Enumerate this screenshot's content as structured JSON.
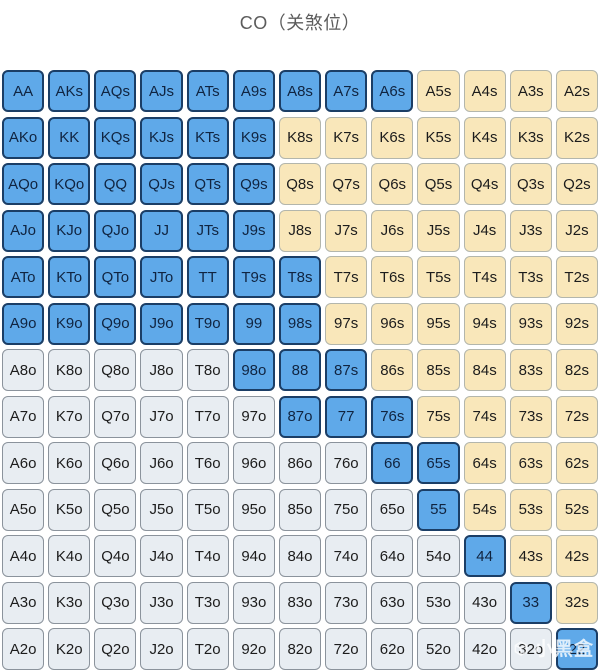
{
  "title": "CO（关煞位）",
  "watermark": {
    "label": "小黑盒"
  },
  "colors": {
    "title_color": "#5c5c5c",
    "cell_text": "#1c1c1c",
    "blue_fill": "#5FA9E9",
    "blue_border": "#1B3E66",
    "blue_text": "#102440",
    "yellow_fill": "#F9E7BA",
    "yellow_border": "#B3B6AC",
    "gray_fill": "#E8EDF2",
    "gray_border": "#8B939C",
    "watermark_color": "rgba(255,255,255,0.8)"
  },
  "chart_data": {
    "type": "heatmap",
    "title": "CO（关煞位）",
    "description_of_states": "13x13 poker starting-hand matrix; state b = blue highlighted hand, y = yellow/cream hand, g = gray unhighlighted hand",
    "state_key": {
      "b": "blue",
      "y": "yellow",
      "g": "gray"
    },
    "labels": [
      [
        "AA",
        "AKs",
        "AQs",
        "AJs",
        "ATs",
        "A9s",
        "A8s",
        "A7s",
        "A6s",
        "A5s",
        "A4s",
        "A3s",
        "A2s"
      ],
      [
        "AKo",
        "KK",
        "KQs",
        "KJs",
        "KTs",
        "K9s",
        "K8s",
        "K7s",
        "K6s",
        "K5s",
        "K4s",
        "K3s",
        "K2s"
      ],
      [
        "AQo",
        "KQo",
        "QQ",
        "QJs",
        "QTs",
        "Q9s",
        "Q8s",
        "Q7s",
        "Q6s",
        "Q5s",
        "Q4s",
        "Q3s",
        "Q2s"
      ],
      [
        "AJo",
        "KJo",
        "QJo",
        "JJ",
        "JTs",
        "J9s",
        "J8s",
        "J7s",
        "J6s",
        "J5s",
        "J4s",
        "J3s",
        "J2s"
      ],
      [
        "ATo",
        "KTo",
        "QTo",
        "JTo",
        "TT",
        "T9s",
        "T8s",
        "T7s",
        "T6s",
        "T5s",
        "T4s",
        "T3s",
        "T2s"
      ],
      [
        "A9o",
        "K9o",
        "Q9o",
        "J9o",
        "T9o",
        "99",
        "98s",
        "97s",
        "96s",
        "95s",
        "94s",
        "93s",
        "92s"
      ],
      [
        "A8o",
        "K8o",
        "Q8o",
        "J8o",
        "T8o",
        "98o",
        "88",
        "87s",
        "86s",
        "85s",
        "84s",
        "83s",
        "82s"
      ],
      [
        "A7o",
        "K7o",
        "Q7o",
        "J7o",
        "T7o",
        "97o",
        "87o",
        "77",
        "76s",
        "75s",
        "74s",
        "73s",
        "72s"
      ],
      [
        "A6o",
        "K6o",
        "Q6o",
        "J6o",
        "T6o",
        "96o",
        "86o",
        "76o",
        "66",
        "65s",
        "64s",
        "63s",
        "62s"
      ],
      [
        "A5o",
        "K5o",
        "Q5o",
        "J5o",
        "T5o",
        "95o",
        "85o",
        "75o",
        "65o",
        "55",
        "54s",
        "53s",
        "52s"
      ],
      [
        "A4o",
        "K4o",
        "Q4o",
        "J4o",
        "T4o",
        "94o",
        "84o",
        "74o",
        "64o",
        "54o",
        "44",
        "43s",
        "42s"
      ],
      [
        "A3o",
        "K3o",
        "Q3o",
        "J3o",
        "T3o",
        "93o",
        "83o",
        "73o",
        "63o",
        "53o",
        "43o",
        "33",
        "32s"
      ],
      [
        "A2o",
        "K2o",
        "Q2o",
        "J2o",
        "T2o",
        "92o",
        "82o",
        "72o",
        "62o",
        "52o",
        "42o",
        "32o",
        "22"
      ]
    ],
    "states": [
      "bbbbbbbbbyyyy",
      "bbbbbbyyyyyyy",
      "bbbbbbyyyyyyy",
      "bbbbbbyyyyyyy",
      "bbbbbbbyyyyyy",
      "bbbbbbbyyyyyy",
      "gggggbbbyyyyy",
      "ggggggbbbyyyy",
      "ggggggggbbyyy",
      "gggggggggbyyy",
      "ggggggggggbyy",
      "gggggggggggby",
      "ggggggggggggb"
    ]
  }
}
